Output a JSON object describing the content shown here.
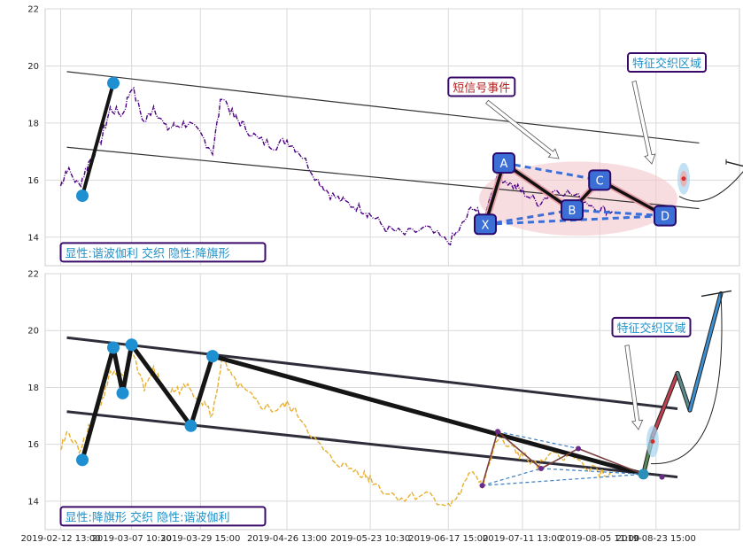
{
  "chart_data": [
    {
      "type": "line",
      "panel": "top",
      "ylim": [
        13,
        22
      ],
      "yticks": [
        14,
        16,
        18,
        20,
        22
      ],
      "grid": true,
      "series_color": "#4b0082",
      "price": [
        [
          "2019-02-12 13:00",
          15.8
        ],
        [
          "2019-02-14 13:00",
          16.4
        ],
        [
          "2019-02-18 13:00",
          15.8
        ],
        [
          "2019-02-21 13:00",
          16.6
        ],
        [
          "2019-02-25 13:00",
          17.4
        ],
        [
          "2019-02-28 13:00",
          18.5
        ],
        [
          "2019-03-04 13:00",
          18.3
        ],
        [
          "2019-03-07 10:30",
          19.3
        ],
        [
          "2019-03-11 13:00",
          18.0
        ],
        [
          "2019-03-14 13:00",
          18.6
        ],
        [
          "2019-03-18 13:00",
          17.8
        ],
        [
          "2019-03-21 13:00",
          17.9
        ],
        [
          "2019-03-25 13:00",
          18.0
        ],
        [
          "2019-03-29 15:00",
          17.6
        ],
        [
          "2019-04-02 13:00",
          17.0
        ],
        [
          "2019-04-05 13:00",
          19.0
        ],
        [
          "2019-04-09 13:00",
          18.2
        ],
        [
          "2019-04-12 13:00",
          17.9
        ],
        [
          "2019-04-17 13:00",
          17.4
        ],
        [
          "2019-04-22 13:00",
          17.2
        ],
        [
          "2019-04-26 13:00",
          17.4
        ],
        [
          "2019-04-30 13:00",
          17.0
        ],
        [
          "2019-05-06 13:00",
          16.0
        ],
        [
          "2019-05-10 13:00",
          15.5
        ],
        [
          "2019-05-15 13:00",
          15.2
        ],
        [
          "2019-05-20 13:00",
          15.0
        ],
        [
          "2019-05-23 10:30",
          14.8
        ],
        [
          "2019-05-28 13:00",
          14.3
        ],
        [
          "2019-06-03 13:00",
          14.1
        ],
        [
          "2019-06-10 13:00",
          14.3
        ],
        [
          "2019-06-17 15:00",
          13.8
        ],
        [
          "2019-06-21 13:00",
          14.3
        ],
        [
          "2019-06-25 13:00",
          15.1
        ],
        [
          "2019-06-28 13:00",
          14.6
        ],
        [
          "2019-07-03 13:00",
          16.2
        ],
        [
          "2019-07-08 13:00",
          15.8
        ],
        [
          "2019-07-11 13:00",
          15.6
        ],
        [
          "2019-07-16 13:00",
          15.2
        ],
        [
          "2019-07-22 13:00",
          15.7
        ],
        [
          "2019-07-29 13:00",
          15.4
        ],
        [
          "2019-08-05 11:00",
          15.0
        ],
        [
          "2019-08-09 13:00",
          14.9
        ]
      ],
      "channel": [
        {
          "from": [
            "2019-02-14 13:00",
            19.8
          ],
          "to": [
            "2019-09-06 13:00",
            17.3
          ]
        },
        {
          "from": [
            "2019-02-14 13:00",
            17.15
          ],
          "to": [
            "2019-09-06 13:00",
            15.0
          ]
        }
      ],
      "zigzag": [
        [
          "2019-02-19 13:00",
          15.45
        ],
        [
          "2019-03-01 13:00",
          19.4
        ]
      ],
      "pattern_ellipse": {
        "center": [
          "2019-07-29 13:00",
          15.35
        ],
        "rx_days": 32,
        "ry": 1.3
      },
      "harmonic_points": [
        {
          "label": "X",
          "t": "2019-06-29 13:00",
          "v": 14.45
        },
        {
          "label": "A",
          "t": "2019-07-05 13:00",
          "v": 16.6
        },
        {
          "label": "B",
          "t": "2019-07-27 13:00",
          "v": 14.95
        },
        {
          "label": "C",
          "t": "2019-08-05 11:00",
          "v": 16.0
        },
        {
          "label": "D",
          "t": "2019-08-26 13:00",
          "v": 14.75
        }
      ],
      "annotations": [
        {
          "text": "短信号事件",
          "color": "#b22222",
          "t": "2019-06-17 15:00",
          "v": 19.1
        },
        {
          "text": "特征交织区域",
          "color": "#1e90c8",
          "t": "2019-08-14 13:00",
          "v": 19.95
        },
        {
          "text": "显性:谐波伽利 交织 隐性:降旗形",
          "color": "#1e90c8",
          "t": "2019-02-12 13:00",
          "v": 13.3
        }
      ]
    },
    {
      "type": "line",
      "panel": "bottom",
      "ylim": [
        13,
        22
      ],
      "yticks": [
        14,
        16,
        18,
        20,
        22
      ],
      "grid": true,
      "series_color": "#e8b030",
      "channel": [
        {
          "from": [
            "2019-02-14 13:00",
            19.75
          ],
          "to": [
            "2019-08-30 13:00",
            17.25
          ]
        },
        {
          "from": [
            "2019-02-14 13:00",
            17.15
          ],
          "to": [
            "2019-08-30 13:00",
            14.85
          ]
        }
      ],
      "zigzag": [
        [
          "2019-02-19 13:00",
          15.45
        ],
        [
          "2019-03-01 13:00",
          19.4
        ],
        [
          "2019-03-04 13:00",
          17.8
        ],
        [
          "2019-03-07 10:30",
          19.5
        ],
        [
          "2019-03-26 13:00",
          16.65
        ],
        [
          "2019-04-02 13:00",
          19.1
        ],
        [
          "2019-08-19 13:00",
          14.95
        ]
      ],
      "projection": [
        [
          "2019-08-19 13:00",
          14.95
        ],
        [
          "2019-08-22 13:00",
          16.3
        ],
        [
          "2019-08-30 13:00",
          18.5
        ],
        [
          "2019-09-03 13:00",
          17.2
        ],
        [
          "2019-09-13 13:00",
          21.3
        ]
      ],
      "annotations": [
        {
          "text": "特征交织区域",
          "color": "#1e90c8",
          "t": "2019-08-09 13:00",
          "v": 19.95
        },
        {
          "text": "显性:降旗形 交织 隐性:谐波伽利",
          "color": "#1e90c8",
          "t": "2019-02-12 13:00",
          "v": 13.3
        }
      ]
    }
  ],
  "x_ticks": [
    "2019-02-12 13:00",
    "2019-03-07 10:30",
    "2019-03-29 15:00",
    "2019-04-26 13:00",
    "2019-05-23 10:30",
    "2019-06-17 15:00",
    "2019-07-11 13:00",
    "2019-08-05 11:00",
    "2019-08-23 15:00"
  ],
  "colors": {
    "zone_fill": "#f4c6cc",
    "node_fill": "#3b6fd6",
    "node_border": "#2a0a6e",
    "dot": "#1e8fd0",
    "dashed": "#3b6fd6",
    "box_border": "#3a0a6a"
  }
}
